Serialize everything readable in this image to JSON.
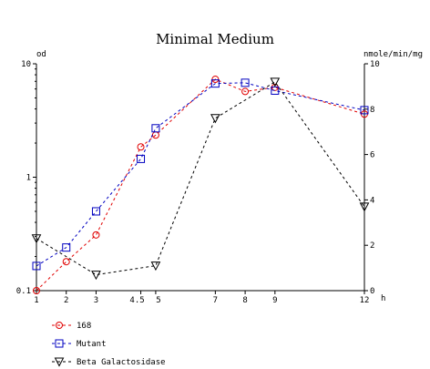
{
  "chart_data": {
    "type": "line",
    "title": "Minimal Medium",
    "xlabel": "h",
    "ylabel_left": "od",
    "ylabel_right": "nmole/min/mg",
    "x_ticks": [
      1,
      2,
      3,
      4.5,
      5,
      7,
      8,
      9,
      12
    ],
    "y_left": {
      "scale": "log",
      "lim": [
        0.1,
        10
      ],
      "ticks": [
        {
          "v": 0.1,
          "label": "0.1"
        },
        {
          "v": 1,
          "label": "1"
        },
        {
          "v": 10,
          "label": "10"
        }
      ]
    },
    "y_right": {
      "scale": "linear",
      "lim": [
        0,
        10
      ],
      "ticks": [
        0,
        2,
        4,
        6,
        8,
        10
      ]
    },
    "xlim": [
      1,
      12
    ],
    "grid": false,
    "legend_placement": "bottom-left",
    "series": [
      {
        "name": "168",
        "axis": "left",
        "marker": "circle",
        "color": "#e00000",
        "x": [
          1,
          2,
          3,
          4.5,
          5,
          7,
          8,
          9,
          12
        ],
        "y": [
          0.1,
          0.18,
          0.31,
          1.85,
          2.35,
          7.3,
          5.7,
          6.2,
          3.6
        ]
      },
      {
        "name": "Mutant",
        "axis": "left",
        "marker": "square",
        "color": "#0000c0",
        "x": [
          1,
          2,
          3,
          4.5,
          5,
          7,
          8,
          9,
          12
        ],
        "y": [
          0.165,
          0.24,
          0.5,
          1.45,
          2.7,
          6.7,
          6.8,
          5.8,
          3.9
        ]
      },
      {
        "name": "Beta Galactosidase",
        "axis": "right",
        "marker": "triangle-down",
        "color": "#000000",
        "x": [
          1,
          3,
          5,
          7,
          9,
          12
        ],
        "y": [
          2.3,
          0.7,
          1.1,
          7.6,
          9.2,
          3.7
        ]
      }
    ]
  }
}
